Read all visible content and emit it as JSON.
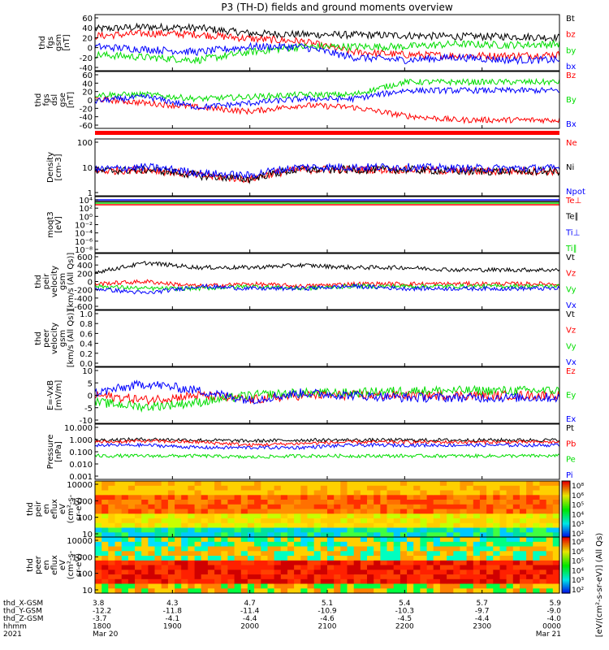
{
  "title": "P3 (TH-D) fields and ground moments overview",
  "colors": {
    "black": "#000000",
    "red": "#ff0000",
    "green": "#00dd00",
    "blue": "#0000ff",
    "bar": "#ff0000"
  },
  "panels": [
    {
      "ylabel": [
        "thd",
        "fgs",
        "gsm",
        "[nT]"
      ],
      "ticks": [
        "60",
        "40",
        "20",
        "0",
        "-20",
        "-40"
      ],
      "ymin": -40,
      "ymax": 65,
      "legend": [
        {
          "label": "Bt",
          "color": "black"
        },
        {
          "label": "bz",
          "color": "red"
        },
        {
          "label": "by",
          "color": "green"
        },
        {
          "label": "bx",
          "color": "blue"
        }
      ]
    },
    {
      "ylabel": [
        "thd",
        "fgs",
        "dsl",
        "gse",
        "[nT]"
      ],
      "ticks": [
        "60",
        "40",
        "20",
        "0",
        "-20",
        "-40",
        "-60"
      ],
      "ymin": -70,
      "ymax": 65,
      "legend": [
        {
          "label": "Bz",
          "color": "red"
        },
        {
          "label": "By",
          "color": "green"
        },
        {
          "label": "Bx",
          "color": "blue"
        }
      ]
    },
    {
      "ylabel": [
        "Density",
        "[cm-3]"
      ],
      "ticks": [
        "100",
        "10",
        "1"
      ],
      "log": true,
      "ymin": 0.3,
      "ymax": 200,
      "legend": [
        {
          "label": "Ne",
          "color": "red"
        },
        {
          "label": "Ni",
          "color": "black"
        },
        {
          "label": "Npot",
          "color": "blue"
        }
      ]
    },
    {
      "ylabel": [
        "moqt3",
        "[eV]"
      ],
      "ticks": [
        "10⁴",
        "10²",
        "10⁰",
        "10⁻²",
        "10⁻⁴",
        "10⁻⁶",
        "10⁻⁸"
      ],
      "log": true,
      "legend": [
        {
          "label": "Te⊥",
          "color": "red"
        },
        {
          "label": "Te∥",
          "color": "black"
        },
        {
          "label": "Ti⊥",
          "color": "blue"
        },
        {
          "label": "Ti∥",
          "color": "green"
        }
      ]
    },
    {
      "ylabel": [
        "thd",
        "peir",
        "velocity",
        "gsm",
        "[km/s (All Qs)]"
      ],
      "ticks": [
        "600",
        "400",
        "200",
        "0",
        "-200",
        "-400",
        "-600"
      ],
      "ymin": -600,
      "ymax": 600,
      "legend": [
        {
          "label": "Vt",
          "color": "black"
        },
        {
          "label": "Vz",
          "color": "red"
        },
        {
          "label": "Vy",
          "color": "green"
        },
        {
          "label": "Vx",
          "color": "blue"
        }
      ]
    },
    {
      "ylabel": [
        "thd",
        "peer",
        "velocity",
        "gsm",
        "[km/s (All Qs)]"
      ],
      "ticks": [
        "1.0",
        "0.8",
        "0.6",
        "0.4",
        "0.2",
        "0.0"
      ],
      "ymin": 0,
      "ymax": 1,
      "legend": [
        {
          "label": "Vt",
          "color": "black"
        },
        {
          "label": "Vz",
          "color": "red"
        },
        {
          "label": "Vy",
          "color": "green"
        },
        {
          "label": "Vx",
          "color": "blue"
        }
      ]
    },
    {
      "ylabel": [
        "E=-VxB",
        "[mV/m]"
      ],
      "ticks": [
        "10",
        "5",
        "0",
        "-5",
        "-10"
      ],
      "ymin": -12,
      "ymax": 12,
      "legend": [
        {
          "label": "Ez",
          "color": "red"
        },
        {
          "label": "Ey",
          "color": "green"
        },
        {
          "label": "Ex",
          "color": "blue"
        }
      ]
    },
    {
      "ylabel": [
        "Pressure",
        "[nPa]"
      ],
      "ticks": [
        "10.000",
        "1.000",
        "0.100",
        "0.010",
        "0.001"
      ],
      "log": true,
      "legend": [
        {
          "label": "Pt",
          "color": "black"
        },
        {
          "label": "Pb",
          "color": "red"
        },
        {
          "label": "Pe",
          "color": "green"
        },
        {
          "label": "Pi",
          "color": "blue"
        }
      ]
    },
    {
      "ylabel": [
        "thd",
        "peir",
        "en",
        "eflux",
        "eV",
        "(cm²-s-",
        "sr-eV)"
      ],
      "ticks": [
        "10000",
        "1000",
        "100",
        "10"
      ],
      "spec": true
    },
    {
      "ylabel": [
        "thd",
        "peer",
        "en",
        "eflux",
        "eV",
        "(cm²-s-",
        "sr-eV)"
      ],
      "ticks": [
        "10000",
        "1000",
        "100",
        "10"
      ],
      "spec": true
    }
  ],
  "colorbar": {
    "ticks": [
      "10⁸",
      "10⁶",
      "10⁵",
      "10⁴",
      "10³",
      "10²",
      "10⁸",
      "10⁶",
      "10⁵",
      "10⁴",
      "10³",
      "10²"
    ],
    "label": "[eV/(cm²-s-sr-eV)] (All Qs)"
  },
  "xaxis": {
    "row_labels": [
      "thd_X-GSM",
      "thd_Y-GSM",
      "thd_Z-GSM",
      "hhmm",
      "2021"
    ],
    "columns": [
      [
        "3.8",
        "-12.2",
        "-3.7",
        "1800",
        "Mar 20"
      ],
      [
        "4.3",
        "-11.8",
        "-4.1",
        "1900",
        ""
      ],
      [
        "4.7",
        "-11.4",
        "-4.4",
        "2000",
        ""
      ],
      [
        "5.1",
        "-10.9",
        "-4.6",
        "2100",
        ""
      ],
      [
        "5.4",
        "-10.3",
        "-4.5",
        "2200",
        ""
      ],
      [
        "5.7",
        "-9.7",
        "-4.4",
        "2300",
        ""
      ],
      [
        "5.9",
        "-9.0",
        "-4.0",
        "0000",
        "Mar 21"
      ]
    ]
  },
  "chart_data": {
    "type": "line",
    "title": "P3 (TH-D) fields and ground moments overview",
    "x_range": [
      "2021-03-20 18:00",
      "2021-03-21 00:00"
    ],
    "subplots": [
      {
        "ylabel": "thd fgs gsm [nT]",
        "ylim": [
          -40,
          65
        ],
        "series": [
          {
            "name": "Bt",
            "values": [
              38,
              42,
              40,
              30,
              28,
              27,
              26,
              24,
              24,
              22
            ]
          },
          {
            "name": "bz",
            "values": [
              25,
              30,
              28,
              20,
              15,
              -5,
              -10,
              -12,
              -12,
              -10
            ]
          },
          {
            "name": "by",
            "values": [
              -10,
              -15,
              -20,
              -5,
              5,
              5,
              5,
              10,
              8,
              10
            ]
          },
          {
            "name": "bx",
            "values": [
              5,
              0,
              -5,
              5,
              5,
              -15,
              -20,
              -15,
              -20,
              -20
            ]
          }
        ]
      },
      {
        "ylabel": "thd fgs dsl gse [nT]",
        "ylim": [
          -70,
          65
        ],
        "series": [
          {
            "name": "Bz",
            "values": [
              0,
              -10,
              -20,
              -30,
              -15,
              -20,
              -40,
              -50,
              -50,
              -50
            ]
          },
          {
            "name": "By",
            "values": [
              10,
              10,
              0,
              5,
              10,
              10,
              40,
              40,
              40,
              40
            ]
          },
          {
            "name": "Bx",
            "values": [
              -5,
              5,
              -20,
              -10,
              0,
              0,
              20,
              20,
              20,
              20
            ]
          }
        ]
      },
      {
        "ylabel": "Density [cm-3]",
        "log": true,
        "series": [
          {
            "name": "Ne",
            "values": [
              5,
              6,
              3,
              2,
              6,
              6,
              6,
              5,
              5,
              5
            ]
          },
          {
            "name": "Ni",
            "values": [
              5,
              6,
              3,
              2,
              6,
              6,
              6,
              5,
              5,
              5
            ]
          },
          {
            "name": "Npot",
            "values": [
              6,
              8,
              4,
              3,
              8,
              8,
              8,
              7,
              7,
              7
            ]
          }
        ]
      },
      {
        "ylabel": "peir velocity gsm [km/s]",
        "ylim": [
          -600,
          600
        ],
        "series": [
          {
            "name": "Vt",
            "values": [
              200,
              400,
              300,
              300,
              350,
              300,
              300,
              250,
              250,
              250
            ]
          },
          {
            "name": "Vz",
            "values": [
              -50,
              0,
              -100,
              -50,
              -100,
              -50,
              -50,
              -50,
              -50,
              -50
            ]
          },
          {
            "name": "Vy",
            "values": [
              -100,
              -150,
              -150,
              -100,
              -150,
              -100,
              -100,
              -100,
              -100,
              -100
            ]
          },
          {
            "name": "Vx",
            "values": [
              -150,
              -250,
              -100,
              -150,
              -150,
              -100,
              -150,
              -150,
              -150,
              -150
            ]
          }
        ]
      },
      {
        "ylabel": "E=-VxB [mV/m]",
        "ylim": [
          -12,
          12
        ],
        "series": [
          {
            "name": "Ez",
            "values": [
              0,
              -2,
              0,
              -2,
              0,
              0,
              0,
              0,
              0,
              0
            ]
          },
          {
            "name": "Ey",
            "values": [
              -3,
              -5,
              -3,
              0,
              1,
              1,
              2,
              2,
              2,
              2
            ]
          },
          {
            "name": "Ex",
            "values": [
              1,
              5,
              2,
              -2,
              1,
              0,
              -1,
              -1,
              -1,
              -1
            ]
          }
        ]
      },
      {
        "ylabel": "Pressure [nPa]",
        "log": true,
        "series": [
          {
            "name": "Pt",
            "values": [
              0.7,
              0.8,
              0.7,
              0.6,
              0.7,
              0.7,
              0.7,
              0.7,
              0.7,
              0.7
            ]
          },
          {
            "name": "Pb",
            "values": [
              0.5,
              0.6,
              0.5,
              0.3,
              0.4,
              0.5,
              0.5,
              0.5,
              0.5,
              0.5
            ]
          },
          {
            "name": "Pe",
            "values": [
              0.05,
              0.05,
              0.05,
              0.04,
              0.05,
              0.05,
              0.05,
              0.05,
              0.05,
              0.05
            ]
          },
          {
            "name": "Pi",
            "values": [
              0.3,
              0.3,
              0.2,
              0.2,
              0.2,
              0.3,
              0.3,
              0.3,
              0.3,
              0.3
            ]
          }
        ]
      }
    ]
  }
}
